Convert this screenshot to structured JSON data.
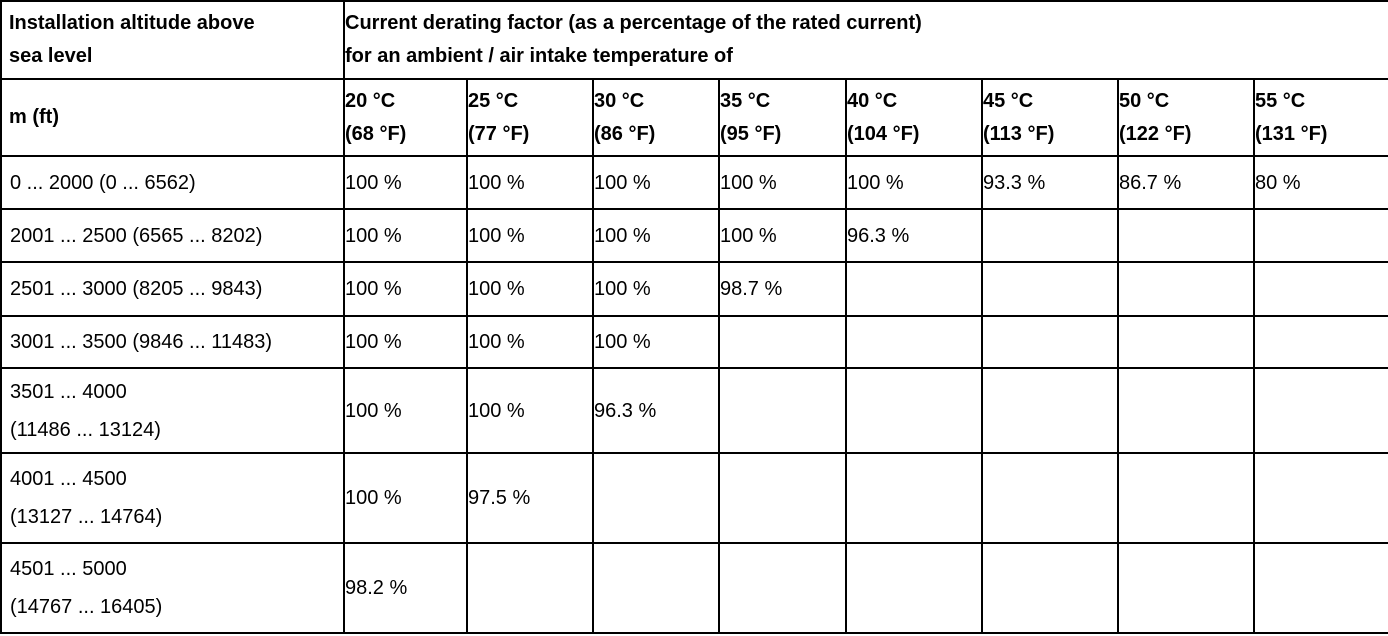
{
  "colors": {
    "border": "#000000",
    "text": "#000000",
    "background": "#ffffff"
  },
  "table": {
    "header": {
      "altitude_title_line1": "Installation altitude above",
      "altitude_title_line2": "sea level",
      "derating_title_line1": "Current derating factor (as a percentage of the rated current)",
      "derating_title_line2": "for an ambient / air intake temperature of",
      "unit_label": "m (ft)",
      "temp_columns": [
        {
          "celsius": "20 °C",
          "fahrenheit": "(68 °F)"
        },
        {
          "celsius": "25 °C",
          "fahrenheit": "(77 °F)"
        },
        {
          "celsius": "30 °C",
          "fahrenheit": "(86 °F)"
        },
        {
          "celsius": "35 °C",
          "fahrenheit": "(95 °F)"
        },
        {
          "celsius": "40 °C",
          "fahrenheit": "(104 °F)"
        },
        {
          "celsius": "45 °C",
          "fahrenheit": "(113 °F)"
        },
        {
          "celsius": "50 °C",
          "fahrenheit": "(122 °F)"
        },
        {
          "celsius": "55 °C",
          "fahrenheit": "(131 °F)"
        }
      ]
    },
    "rows": [
      {
        "altitude_line1": "0 ... 2000 (0 ... 6562)",
        "altitude_line2": "",
        "values": [
          "100 %",
          "100 %",
          "100 %",
          "100 %",
          "100 %",
          "93.3 %",
          "86.7 %",
          "80 %"
        ]
      },
      {
        "altitude_line1": "2001 ... 2500 (6565 ... 8202)",
        "altitude_line2": "",
        "values": [
          "100 %",
          "100 %",
          "100 %",
          "100 %",
          "96.3 %",
          "",
          "",
          ""
        ]
      },
      {
        "altitude_line1": "2501 ... 3000 (8205 ... 9843)",
        "altitude_line2": "",
        "values": [
          "100 %",
          "100 %",
          "100 %",
          "98.7 %",
          "",
          "",
          "",
          ""
        ]
      },
      {
        "altitude_line1": "3001 ... 3500 (9846 ... 11483)",
        "altitude_line2": "",
        "values": [
          "100 %",
          "100 %",
          "100 %",
          "",
          "",
          "",
          "",
          ""
        ]
      },
      {
        "altitude_line1": "3501 ... 4000",
        "altitude_line2": "(11486 ... 13124)",
        "values": [
          "100 %",
          "100 %",
          "96.3 %",
          "",
          "",
          "",
          "",
          ""
        ]
      },
      {
        "altitude_line1": "4001 ... 4500",
        "altitude_line2": "(13127 ... 14764)",
        "values": [
          "100 %",
          "97.5 %",
          "",
          "",
          "",
          "",
          "",
          ""
        ]
      },
      {
        "altitude_line1": "4501 ... 5000",
        "altitude_line2": "(14767 ... 16405)",
        "values": [
          "98.2 %",
          "",
          "",
          "",
          "",
          "",
          "",
          ""
        ]
      }
    ]
  }
}
